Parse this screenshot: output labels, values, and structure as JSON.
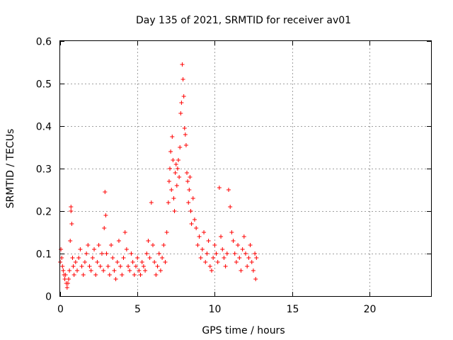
{
  "chart_data": {
    "type": "scatter",
    "title": "Day 135 of 2021, SRMTID for receiver av01",
    "xlabel": "GPS time / hours",
    "ylabel": "SRMTID / TECUs",
    "xlim": [
      0,
      24
    ],
    "ylim": [
      0,
      0.6
    ],
    "xticks": [
      0,
      5,
      10,
      15,
      20
    ],
    "yticks": [
      0,
      0.1,
      0.2,
      0.3,
      0.4,
      0.5,
      0.6
    ],
    "grid": true,
    "marker": "+",
    "marker_color": "#ff0000",
    "series": [
      {
        "name": "av01",
        "points": [
          [
            0.0,
            0.08
          ],
          [
            0.05,
            0.11
          ],
          [
            0.1,
            0.09
          ],
          [
            0.15,
            0.07
          ],
          [
            0.2,
            0.06
          ],
          [
            0.25,
            0.05
          ],
          [
            0.3,
            0.04
          ],
          [
            0.35,
            0.05
          ],
          [
            0.4,
            0.03
          ],
          [
            0.45,
            0.02
          ],
          [
            0.5,
            0.03
          ],
          [
            0.55,
            0.04
          ],
          [
            0.6,
            0.06
          ],
          [
            0.65,
            0.13
          ],
          [
            0.7,
            0.2
          ],
          [
            0.7,
            0.21
          ],
          [
            0.75,
            0.17
          ],
          [
            0.8,
            0.09
          ],
          [
            0.85,
            0.07
          ],
          [
            0.9,
            0.05
          ],
          [
            1.0,
            0.08
          ],
          [
            1.1,
            0.06
          ],
          [
            1.2,
            0.09
          ],
          [
            1.3,
            0.11
          ],
          [
            1.4,
            0.07
          ],
          [
            1.5,
            0.05
          ],
          [
            1.6,
            0.08
          ],
          [
            1.7,
            0.1
          ],
          [
            1.8,
            0.12
          ],
          [
            1.9,
            0.07
          ],
          [
            2.0,
            0.06
          ],
          [
            2.1,
            0.09
          ],
          [
            2.2,
            0.11
          ],
          [
            2.3,
            0.05
          ],
          [
            2.4,
            0.08
          ],
          [
            2.5,
            0.12
          ],
          [
            2.6,
            0.07
          ],
          [
            2.7,
            0.1
          ],
          [
            2.8,
            0.06
          ],
          [
            2.85,
            0.16
          ],
          [
            2.9,
            0.245
          ],
          [
            2.95,
            0.19
          ],
          [
            3.0,
            0.1
          ],
          [
            3.1,
            0.07
          ],
          [
            3.2,
            0.05
          ],
          [
            3.3,
            0.12
          ],
          [
            3.4,
            0.09
          ],
          [
            3.5,
            0.06
          ],
          [
            3.6,
            0.04
          ],
          [
            3.7,
            0.08
          ],
          [
            3.8,
            0.13
          ],
          [
            3.9,
            0.07
          ],
          [
            4.0,
            0.05
          ],
          [
            4.1,
            0.09
          ],
          [
            4.2,
            0.15
          ],
          [
            4.3,
            0.11
          ],
          [
            4.4,
            0.07
          ],
          [
            4.5,
            0.06
          ],
          [
            4.6,
            0.1
          ],
          [
            4.7,
            0.08
          ],
          [
            4.8,
            0.05
          ],
          [
            4.9,
            0.07
          ],
          [
            5.0,
            0.09
          ],
          [
            5.1,
            0.06
          ],
          [
            5.2,
            0.05
          ],
          [
            5.3,
            0.08
          ],
          [
            5.4,
            0.07
          ],
          [
            5.5,
            0.06
          ],
          [
            5.6,
            0.1
          ],
          [
            5.7,
            0.13
          ],
          [
            5.8,
            0.09
          ],
          [
            5.9,
            0.22
          ],
          [
            6.0,
            0.12
          ],
          [
            6.1,
            0.08
          ],
          [
            6.2,
            0.05
          ],
          [
            6.3,
            0.07
          ],
          [
            6.4,
            0.1
          ],
          [
            6.5,
            0.06
          ],
          [
            6.6,
            0.09
          ],
          [
            6.7,
            0.12
          ],
          [
            6.8,
            0.08
          ],
          [
            6.9,
            0.15
          ],
          [
            7.0,
            0.22
          ],
          [
            7.05,
            0.27
          ],
          [
            7.1,
            0.3
          ],
          [
            7.15,
            0.34
          ],
          [
            7.2,
            0.25
          ],
          [
            7.25,
            0.375
          ],
          [
            7.3,
            0.32
          ],
          [
            7.35,
            0.23
          ],
          [
            7.4,
            0.2
          ],
          [
            7.45,
            0.29
          ],
          [
            7.5,
            0.31
          ],
          [
            7.55,
            0.26
          ],
          [
            7.6,
            0.3
          ],
          [
            7.65,
            0.32
          ],
          [
            7.7,
            0.28
          ],
          [
            7.75,
            0.35
          ],
          [
            7.8,
            0.43
          ],
          [
            7.85,
            0.455
          ],
          [
            7.9,
            0.545
          ],
          [
            7.95,
            0.51
          ],
          [
            8.0,
            0.47
          ],
          [
            8.05,
            0.395
          ],
          [
            8.1,
            0.38
          ],
          [
            8.15,
            0.355
          ],
          [
            8.2,
            0.29
          ],
          [
            8.25,
            0.27
          ],
          [
            8.3,
            0.22
          ],
          [
            8.35,
            0.25
          ],
          [
            8.4,
            0.28
          ],
          [
            8.45,
            0.2
          ],
          [
            8.5,
            0.17
          ],
          [
            8.6,
            0.23
          ],
          [
            8.7,
            0.18
          ],
          [
            8.8,
            0.16
          ],
          [
            8.9,
            0.12
          ],
          [
            9.0,
            0.14
          ],
          [
            9.1,
            0.09
          ],
          [
            9.2,
            0.11
          ],
          [
            9.3,
            0.15
          ],
          [
            9.4,
            0.08
          ],
          [
            9.5,
            0.1
          ],
          [
            9.6,
            0.13
          ],
          [
            9.7,
            0.07
          ],
          [
            9.8,
            0.06
          ],
          [
            9.9,
            0.09
          ],
          [
            10.0,
            0.12
          ],
          [
            10.1,
            0.1
          ],
          [
            10.2,
            0.08
          ],
          [
            10.3,
            0.255
          ],
          [
            10.4,
            0.14
          ],
          [
            10.5,
            0.11
          ],
          [
            10.6,
            0.09
          ],
          [
            10.7,
            0.07
          ],
          [
            10.8,
            0.1
          ],
          [
            10.9,
            0.25
          ],
          [
            11.0,
            0.21
          ],
          [
            11.1,
            0.15
          ],
          [
            11.2,
            0.13
          ],
          [
            11.3,
            0.1
          ],
          [
            11.4,
            0.08
          ],
          [
            11.5,
            0.12
          ],
          [
            11.6,
            0.09
          ],
          [
            11.7,
            0.06
          ],
          [
            11.8,
            0.11
          ],
          [
            11.9,
            0.14
          ],
          [
            12.0,
            0.1
          ],
          [
            12.1,
            0.07
          ],
          [
            12.2,
            0.09
          ],
          [
            12.3,
            0.12
          ],
          [
            12.4,
            0.08
          ],
          [
            12.5,
            0.06
          ],
          [
            12.6,
            0.1
          ],
          [
            12.65,
            0.04
          ],
          [
            12.7,
            0.09
          ]
        ]
      }
    ]
  }
}
